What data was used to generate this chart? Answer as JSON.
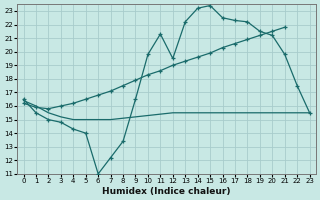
{
  "xlabel": "Humidex (Indice chaleur)",
  "background_color": "#c8e8e4",
  "grid_color": "#a8cccc",
  "line_color": "#1a6b6b",
  "xlim": [
    -0.5,
    23.5
  ],
  "ylim": [
    11,
    23.5
  ],
  "yticks": [
    11,
    12,
    13,
    14,
    15,
    16,
    17,
    18,
    19,
    20,
    21,
    22,
    23
  ],
  "xticks": [
    0,
    1,
    2,
    3,
    4,
    5,
    6,
    7,
    8,
    9,
    10,
    11,
    12,
    13,
    14,
    15,
    16,
    17,
    18,
    19,
    20,
    21,
    22,
    23
  ],
  "line1_x": [
    0,
    1,
    2,
    3,
    4,
    5,
    6,
    7,
    8,
    9,
    10,
    11,
    12,
    13,
    14,
    15,
    16,
    17,
    18,
    19,
    20,
    21,
    22,
    23
  ],
  "line1_y": [
    16.5,
    15.5,
    15.0,
    14.8,
    14.3,
    14.0,
    11.0,
    12.2,
    13.4,
    16.5,
    19.8,
    21.3,
    19.5,
    22.2,
    23.2,
    23.4,
    22.5,
    22.3,
    22.2,
    21.5,
    21.2,
    19.8,
    17.5,
    15.5
  ],
  "line2_x": [
    0,
    1,
    2,
    3,
    4,
    5,
    6,
    7,
    8,
    9,
    10,
    11,
    12,
    13,
    14,
    15,
    16,
    17,
    18,
    19,
    20,
    21
  ],
  "line2_y": [
    16.2,
    15.9,
    15.8,
    16.0,
    16.2,
    16.5,
    16.8,
    17.1,
    17.5,
    17.9,
    18.3,
    18.6,
    19.0,
    19.3,
    19.6,
    19.9,
    20.3,
    20.6,
    20.9,
    21.2,
    21.5,
    21.8
  ],
  "line3_x": [
    0,
    1,
    2,
    3,
    4,
    5,
    6,
    7,
    8,
    9,
    10,
    11,
    12,
    13,
    14,
    15,
    16,
    17,
    18,
    19,
    20,
    21,
    22,
    23
  ],
  "line3_y": [
    16.4,
    16.0,
    15.5,
    15.2,
    15.0,
    15.0,
    15.0,
    15.0,
    15.1,
    15.2,
    15.3,
    15.4,
    15.5,
    15.5,
    15.5,
    15.5,
    15.5,
    15.5,
    15.5,
    15.5,
    15.5,
    15.5,
    15.5,
    15.5
  ]
}
